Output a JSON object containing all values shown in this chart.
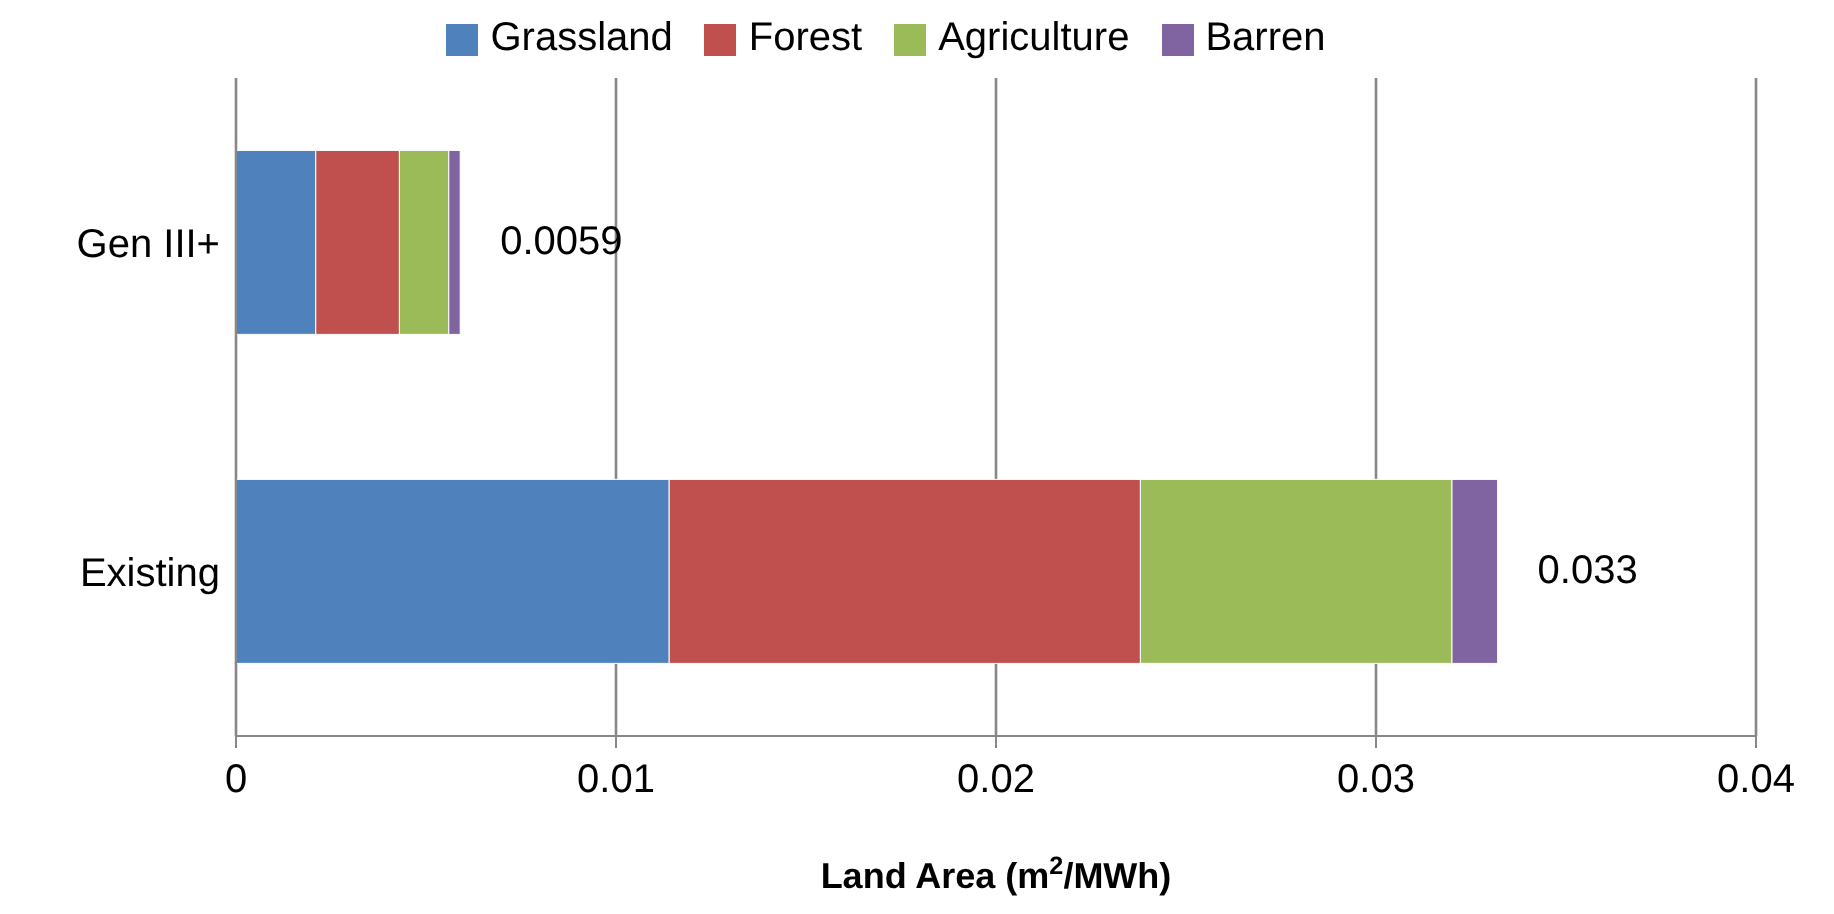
{
  "chart_data": {
    "type": "bar",
    "orientation": "horizontal",
    "stacked": true,
    "categories": [
      "Gen III+",
      "Existing"
    ],
    "series": [
      {
        "name": "Grassland",
        "color": "#4f81bd",
        "values": [
          0.0021,
          0.0114
        ]
      },
      {
        "name": "Forest",
        "color": "#c0504d",
        "values": [
          0.0022,
          0.0124
        ]
      },
      {
        "name": "Agriculture",
        "color": "#9bbb59",
        "values": [
          0.0013,
          0.0082
        ]
      },
      {
        "name": "Barren",
        "color": "#8064a2",
        "values": [
          0.0003,
          0.0012
        ]
      }
    ],
    "totals": [
      "0.0059",
      "0.033"
    ],
    "xlabel": "Land Area (m$^{2}$/MWh)",
    "xlim": [
      0,
      0.04
    ],
    "xticks": [
      0,
      0.01,
      0.02,
      0.03,
      0.04
    ],
    "grid": "x",
    "legend": "top"
  }
}
